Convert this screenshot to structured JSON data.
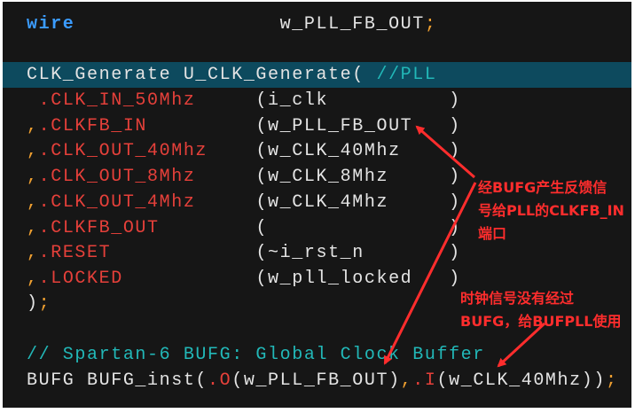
{
  "code": {
    "wire_line": {
      "keyword": "wire",
      "gap": "                 ",
      "name": "w_PLL_FB_OUT",
      "semi": ";"
    },
    "inst_line": {
      "text": "CLK_Generate U_CLK_Generate( ",
      "comment": "//PLL"
    },
    "ports": [
      {
        "lead": " ",
        "port": ".CLK_IN_50Mhz",
        "conn": "     (i_clk          )"
      },
      {
        "lead": ",",
        "port": ".CLKFB_IN",
        "conn": "         (w_PLL_FB_OUT   )"
      },
      {
        "lead": ",",
        "port": ".CLK_OUT_40Mhz",
        "conn": "    (w_CLK_40Mhz    )"
      },
      {
        "lead": ",",
        "port": ".CLK_OUT_8Mhz",
        "conn": "     (w_CLK_8Mhz     )"
      },
      {
        "lead": ",",
        "port": ".CLK_OUT_4Mhz",
        "conn": "     (w_CLK_4Mhz     )"
      },
      {
        "lead": ",",
        "port": ".CLKFB_OUT",
        "conn": "        (               )"
      },
      {
        "lead": ",",
        "port": ".RESET",
        "conn": "            (~i_rst_n       )"
      },
      {
        "lead": ",",
        "port": ".LOCKED",
        "conn": "           (w_pll_locked   )"
      }
    ],
    "close_line": {
      "paren": ")",
      "semi": ";"
    },
    "comment_line": "// Spartan-6 BUFG: Global Clock Buffer",
    "bufg_line": {
      "a": "BUFG BUFG_inst(",
      "o": ".O",
      "b": "(w_PLL_FB_OUT)",
      "comma": ",",
      "i": ".I",
      "c": "(w_CLK_40Mhz))",
      "semi": ";"
    }
  },
  "annotations": {
    "note1": "经BUFG产生反馈信\n号给PLL的CLKFB_IN\n端口",
    "note2": "时钟信号没有经过\nBUFG，给BUFPLL使用"
  },
  "colors": {
    "background": "#161616",
    "highlight": "#0d4a5e",
    "keyword": "#3b9cff",
    "port": "#e5403a",
    "punctuation": "#f0a030",
    "comment": "#22b8b8",
    "annotation": "#ff2d2d"
  }
}
